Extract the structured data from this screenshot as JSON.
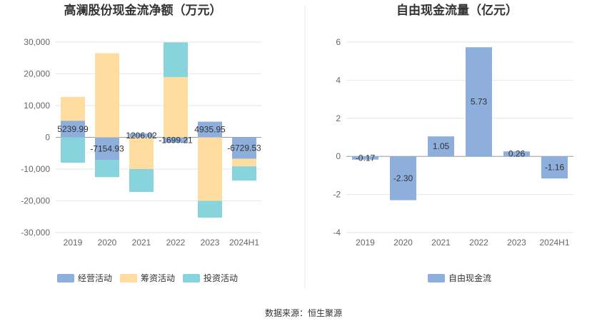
{
  "source": "数据来源：恒生聚源",
  "chart_data": [
    {
      "type": "bar",
      "stacked": true,
      "title": "高澜股份现金流净额（万元）",
      "categories": [
        "2019",
        "2020",
        "2021",
        "2022",
        "2023",
        "2024H1"
      ],
      "ylim": [
        -30000,
        30000
      ],
      "yticks": [
        "30,000",
        "20,000",
        "10,000",
        "0",
        "-10,000",
        "-20,000",
        "-30,000"
      ],
      "ytick_values": [
        30000,
        20000,
        10000,
        0,
        -10000,
        -20000,
        -30000
      ],
      "grid": true,
      "legend_position": "bottom",
      "series": [
        {
          "name": "经营活动",
          "color": "#8eaedc",
          "values": [
            5239.99,
            -7154.93,
            1206.02,
            -1699.21,
            4935.95,
            -6729.53
          ]
        },
        {
          "name": "筹资活动",
          "color": "#ffdca0",
          "values": [
            7500,
            26500,
            -10000,
            19000,
            -20000,
            -2400
          ]
        },
        {
          "name": "投资活动",
          "color": "#88d4dc",
          "values": [
            -8000,
            -5400,
            -7200,
            10900,
            -5300,
            -4500
          ]
        }
      ],
      "data_labels": [
        "5239.99",
        "-7154.93",
        "1206.02",
        "-1699.21",
        "4935.95",
        "-6729.53"
      ]
    },
    {
      "type": "bar",
      "title": "自由现金流量（亿元）",
      "categories": [
        "2019",
        "2020",
        "2021",
        "2022",
        "2023",
        "2024H1"
      ],
      "ylim": [
        -4,
        6
      ],
      "yticks": [
        "6",
        "4",
        "2",
        "0",
        "-2",
        "-4"
      ],
      "ytick_values": [
        6,
        4,
        2,
        0,
        -2,
        -4
      ],
      "grid": true,
      "legend_position": "bottom",
      "series": [
        {
          "name": "自由现金流",
          "color": "#8eaedc",
          "values": [
            -0.17,
            -2.3,
            1.05,
            5.73,
            0.26,
            -1.16
          ]
        }
      ],
      "data_labels": [
        "-0.17",
        "-2.30",
        "1.05",
        "5.73",
        "0.26",
        "-1.16"
      ]
    }
  ]
}
